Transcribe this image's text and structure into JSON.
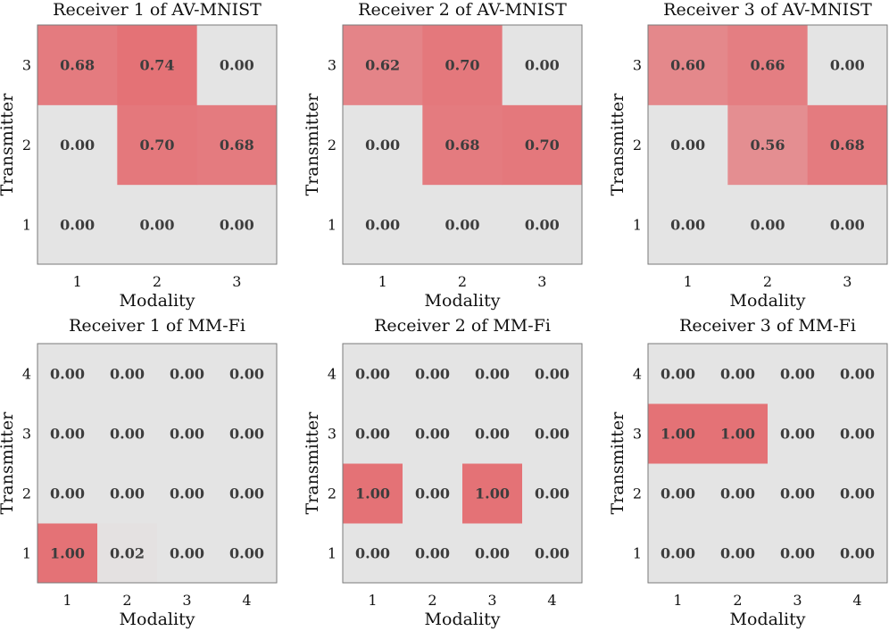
{
  "chart_data": [
    {
      "type": "heatmap",
      "title": "Receiver 1 of AV-MNIST",
      "xlabel": "Modality",
      "ylabel": "Transmitter",
      "x_categories": [
        "1",
        "2",
        "3"
      ],
      "y_categories": [
        "1",
        "2",
        "3"
      ],
      "values": [
        [
          0.0,
          0.0,
          0.0
        ],
        [
          0.0,
          0.7,
          0.68
        ],
        [
          0.68,
          0.74,
          0.0
        ]
      ],
      "labels": [
        [
          "0.00",
          "0.00",
          "0.00"
        ],
        [
          "0.00",
          "0.70",
          "0.68"
        ],
        [
          "0.68",
          "0.74",
          "0.00"
        ]
      ]
    },
    {
      "type": "heatmap",
      "title": "Receiver 2 of AV-MNIST",
      "xlabel": "Modality",
      "ylabel": "Transmitter",
      "x_categories": [
        "1",
        "2",
        "3"
      ],
      "y_categories": [
        "1",
        "2",
        "3"
      ],
      "values": [
        [
          0.0,
          0.0,
          0.0
        ],
        [
          0.0,
          0.68,
          0.7
        ],
        [
          0.62,
          0.7,
          0.0
        ]
      ],
      "labels": [
        [
          "0.00",
          "0.00",
          "0.00"
        ],
        [
          "0.00",
          "0.68",
          "0.70"
        ],
        [
          "0.62",
          "0.70",
          "0.00"
        ]
      ]
    },
    {
      "type": "heatmap",
      "title": "Receiver 3 of AV-MNIST",
      "xlabel": "Modality",
      "ylabel": "Transmitter",
      "x_categories": [
        "1",
        "2",
        "3"
      ],
      "y_categories": [
        "1",
        "2",
        "3"
      ],
      "values": [
        [
          0.0,
          0.0,
          0.0
        ],
        [
          0.0,
          0.56,
          0.68
        ],
        [
          0.6,
          0.66,
          0.0
        ]
      ],
      "labels": [
        [
          "0.00",
          "0.00",
          "0.00"
        ],
        [
          "0.00",
          "0.56",
          "0.68"
        ],
        [
          "0.60",
          "0.66",
          "0.00"
        ]
      ]
    },
    {
      "type": "heatmap",
      "title": "Receiver 1 of MM-Fi",
      "xlabel": "Modality",
      "ylabel": "Transmitter",
      "x_categories": [
        "1",
        "2",
        "3",
        "4"
      ],
      "y_categories": [
        "1",
        "2",
        "3",
        "4"
      ],
      "values": [
        [
          1.0,
          0.02,
          0.0,
          0.0
        ],
        [
          0.0,
          0.0,
          0.0,
          0.0
        ],
        [
          0.0,
          0.0,
          0.0,
          0.0
        ],
        [
          0.0,
          0.0,
          0.0,
          0.0
        ]
      ],
      "labels": [
        [
          "1.00",
          "0.02",
          "0.00",
          "0.00"
        ],
        [
          "0.00",
          "0.00",
          "0.00",
          "0.00"
        ],
        [
          "0.00",
          "0.00",
          "0.00",
          "0.00"
        ],
        [
          "0.00",
          "0.00",
          "0.00",
          "0.00"
        ]
      ]
    },
    {
      "type": "heatmap",
      "title": "Receiver 2 of MM-Fi",
      "xlabel": "Modality",
      "ylabel": "Transmitter",
      "x_categories": [
        "1",
        "2",
        "3",
        "4"
      ],
      "y_categories": [
        "1",
        "2",
        "3",
        "4"
      ],
      "values": [
        [
          0.0,
          0.0,
          0.0,
          0.0
        ],
        [
          1.0,
          0.0,
          1.0,
          0.0
        ],
        [
          0.0,
          0.0,
          0.0,
          0.0
        ],
        [
          0.0,
          0.0,
          0.0,
          0.0
        ]
      ],
      "labels": [
        [
          "0.00",
          "0.00",
          "0.00",
          "0.00"
        ],
        [
          "1.00",
          "0.00",
          "1.00",
          "0.00"
        ],
        [
          "0.00",
          "0.00",
          "0.00",
          "0.00"
        ],
        [
          "0.00",
          "0.00",
          "0.00",
          "0.00"
        ]
      ]
    },
    {
      "type": "heatmap",
      "title": "Receiver 3 of MM-Fi",
      "xlabel": "Modality",
      "ylabel": "Transmitter",
      "x_categories": [
        "1",
        "2",
        "3",
        "4"
      ],
      "y_categories": [
        "1",
        "2",
        "3",
        "4"
      ],
      "values": [
        [
          0.0,
          0.0,
          0.0,
          0.0
        ],
        [
          0.0,
          0.0,
          0.0,
          0.0
        ],
        [
          1.0,
          1.0,
          0.0,
          0.0
        ],
        [
          0.0,
          0.0,
          0.0,
          0.0
        ]
      ],
      "labels": [
        [
          "0.00",
          "0.00",
          "0.00",
          "0.00"
        ],
        [
          "0.00",
          "0.00",
          "0.00",
          "0.00"
        ],
        [
          "1.00",
          "1.00",
          "0.00",
          "0.00"
        ],
        [
          "0.00",
          "0.00",
          "0.00",
          "0.00"
        ]
      ]
    }
  ],
  "colors": {
    "empty_cell": "#e4e4e4",
    "high_cell": "#e47276",
    "value_text": "#3d3d3d"
  }
}
